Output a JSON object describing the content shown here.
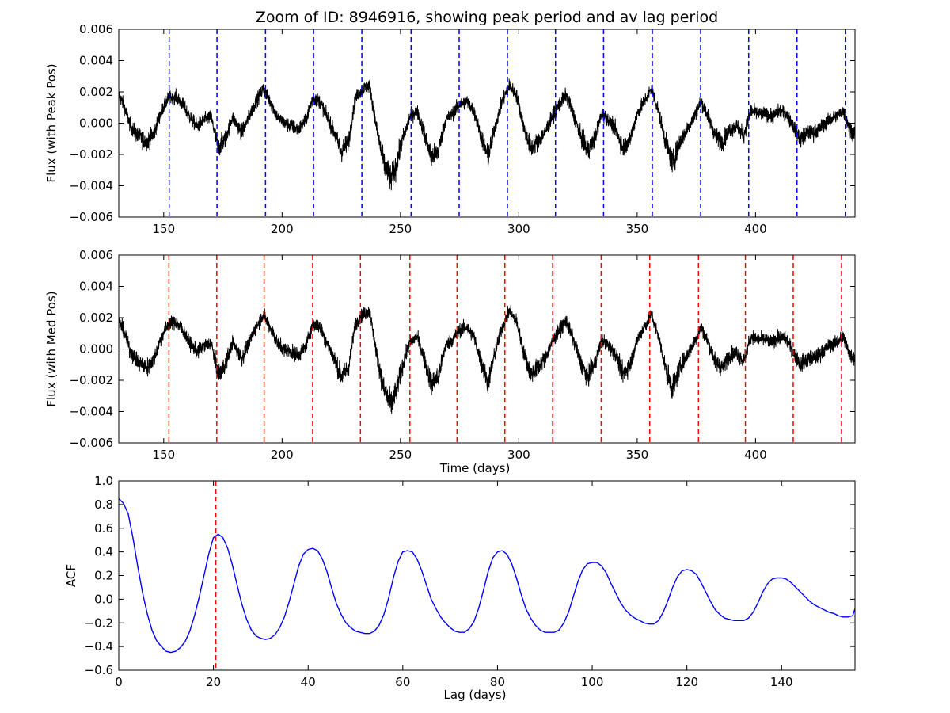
{
  "title": "Zoom of ID: 8946916, showing peak period and av lag period",
  "colors": {
    "flux": "#000000",
    "peak_lines": "#0000ff",
    "median_lines": "#ff0000",
    "acf": "#0000ff",
    "period_line": "#ff0000"
  },
  "chart_data": [
    {
      "type": "line",
      "panel": "top",
      "xlabel": "",
      "ylabel": "Flux (with Peak Pos)",
      "xlim": [
        131,
        442
      ],
      "ylim": [
        -0.006,
        0.006
      ],
      "xticks": [
        "150",
        "200",
        "250",
        "300",
        "350",
        "400"
      ],
      "yticks": [
        "−0.006",
        "−0.004",
        "−0.002",
        "0.000",
        "0.002",
        "0.004",
        "0.006"
      ],
      "vlines": [
        152.3,
        172.5,
        193.0,
        213.3,
        233.7,
        254.5,
        274.8,
        295.2,
        315.5,
        335.8,
        356.4,
        376.8,
        397.1,
        417.5,
        437.9
      ],
      "vline_style": "dashed-blue",
      "series": [
        {
          "x": [
            131,
            133,
            136,
            139,
            143,
            146,
            149,
            152,
            155,
            158,
            161,
            164,
            167,
            170,
            173,
            176,
            179,
            183,
            186,
            189,
            192,
            195,
            198,
            201,
            204,
            207,
            210,
            213,
            216,
            219,
            222,
            225,
            228,
            231,
            234,
            237,
            240,
            243,
            246,
            248,
            251,
            254,
            257,
            260,
            263,
            266,
            269,
            272,
            275,
            278,
            281,
            284,
            287,
            290,
            293,
            296,
            299,
            302,
            305,
            308,
            311,
            314,
            317,
            320,
            323,
            326,
            329,
            332,
            335,
            338,
            341,
            344,
            347,
            350,
            353,
            356,
            359,
            362,
            365,
            368,
            371,
            374,
            377,
            380,
            383,
            386,
            389,
            392,
            395,
            398,
            401,
            404,
            407,
            410,
            413,
            416,
            419,
            422,
            425,
            428,
            431,
            434,
            437,
            440,
            442
          ],
          "values": [
            0.0018,
            0.0012,
            -0.0002,
            -0.0008,
            -0.0012,
            -0.0006,
            0.0008,
            0.0016,
            0.0017,
            0.0012,
            0.0004,
            -0.0002,
            0.0002,
            0.0004,
            -0.0016,
            -0.001,
            0.0004,
            -0.0006,
            0.0004,
            0.0014,
            0.0022,
            0.0014,
            0.0004,
            0.0,
            -0.0002,
            -0.0004,
            0.0002,
            0.0016,
            0.0014,
            0.0004,
            -0.0006,
            -0.0018,
            -0.0012,
            0.0016,
            0.0022,
            0.0024,
            -0.0004,
            -0.0026,
            -0.0036,
            -0.0028,
            -0.001,
            0.0004,
            0.0008,
            -0.0006,
            -0.0022,
            -0.0018,
            0.0002,
            0.0006,
            0.0012,
            0.0014,
            0.0008,
            -0.0008,
            -0.0022,
            -0.0002,
            0.0014,
            0.0024,
            0.0018,
            -0.0002,
            -0.0016,
            -0.0012,
            -0.0006,
            0.0004,
            0.0012,
            0.0018,
            0.0006,
            -0.0008,
            -0.0018,
            -0.001,
            0.0006,
            0.0002,
            -0.0004,
            -0.0016,
            -0.001,
            0.0006,
            0.0014,
            0.0022,
            0.0008,
            -0.0012,
            -0.0026,
            -0.0012,
            -0.0004,
            0.0004,
            0.0014,
            0.0004,
            -0.0008,
            -0.0012,
            -0.0004,
            -0.0002,
            -0.0008,
            0.0008,
            0.0006,
            0.0006,
            0.0004,
            0.0008,
            0.0006,
            -0.0002,
            -0.001,
            -0.0006,
            -0.0006,
            -0.0002,
            0.0002,
            0.0004,
            0.0008,
            -0.0004,
            -0.0006
          ]
        }
      ]
    },
    {
      "type": "line",
      "panel": "middle",
      "xlabel": "Time (days)",
      "ylabel": "Flux (with Med Pos)",
      "xlim": [
        131,
        442
      ],
      "ylim": [
        -0.006,
        0.006
      ],
      "xticks": [
        "150",
        "200",
        "250",
        "300",
        "350",
        "400"
      ],
      "yticks": [
        "−0.006",
        "−0.004",
        "−0.002",
        "0.000",
        "0.002",
        "0.004",
        "0.006"
      ],
      "vlines": [
        152.2,
        172.4,
        192.4,
        212.9,
        233.1,
        254.0,
        273.9,
        294.1,
        314.3,
        334.8,
        355.3,
        375.9,
        395.7,
        415.9,
        436.3
      ],
      "vline_style": "dashed-red",
      "series": [
        {
          "x": [
            131,
            133,
            136,
            139,
            143,
            146,
            149,
            152,
            155,
            158,
            161,
            164,
            167,
            170,
            173,
            176,
            179,
            183,
            186,
            189,
            192,
            195,
            198,
            201,
            204,
            207,
            210,
            213,
            216,
            219,
            222,
            225,
            228,
            231,
            234,
            237,
            240,
            243,
            246,
            248,
            251,
            254,
            257,
            260,
            263,
            266,
            269,
            272,
            275,
            278,
            281,
            284,
            287,
            290,
            293,
            296,
            299,
            302,
            305,
            308,
            311,
            314,
            317,
            320,
            323,
            326,
            329,
            332,
            335,
            338,
            341,
            344,
            347,
            350,
            353,
            356,
            359,
            362,
            365,
            368,
            371,
            374,
            377,
            380,
            383,
            386,
            389,
            392,
            395,
            398,
            401,
            404,
            407,
            410,
            413,
            416,
            419,
            422,
            425,
            428,
            431,
            434,
            437,
            440,
            442
          ],
          "values": [
            0.0018,
            0.0012,
            -0.0002,
            -0.0008,
            -0.0012,
            -0.0006,
            0.0008,
            0.0016,
            0.0017,
            0.0012,
            0.0004,
            -0.0002,
            0.0002,
            0.0004,
            -0.0016,
            -0.001,
            0.0004,
            -0.0006,
            0.0004,
            0.0014,
            0.0022,
            0.0014,
            0.0004,
            0.0,
            -0.0002,
            -0.0004,
            0.0002,
            0.0016,
            0.0014,
            0.0004,
            -0.0006,
            -0.0018,
            -0.0012,
            0.0016,
            0.0022,
            0.0024,
            -0.0004,
            -0.0026,
            -0.0036,
            -0.0028,
            -0.001,
            0.0004,
            0.0008,
            -0.0006,
            -0.0022,
            -0.0018,
            0.0002,
            0.0006,
            0.0012,
            0.0014,
            0.0008,
            -0.0008,
            -0.0022,
            -0.0002,
            0.0014,
            0.0024,
            0.0018,
            -0.0002,
            -0.0016,
            -0.0012,
            -0.0006,
            0.0004,
            0.0012,
            0.0018,
            0.0006,
            -0.0008,
            -0.0018,
            -0.001,
            0.0006,
            0.0002,
            -0.0004,
            -0.0016,
            -0.001,
            0.0006,
            0.0014,
            0.0022,
            0.0008,
            -0.0012,
            -0.0026,
            -0.0012,
            -0.0004,
            0.0004,
            0.0014,
            0.0004,
            -0.0008,
            -0.0012,
            -0.0004,
            -0.0002,
            -0.0008,
            0.0008,
            0.0006,
            0.0006,
            0.0004,
            0.0008,
            0.0006,
            -0.0002,
            -0.001,
            -0.0006,
            -0.0006,
            -0.0002,
            0.0002,
            0.0004,
            0.0008,
            -0.0004,
            -0.0006
          ]
        }
      ]
    },
    {
      "type": "line",
      "panel": "bottom",
      "xlabel": "Lag (days)",
      "ylabel": "ACF",
      "xlim": [
        0,
        155.5
      ],
      "ylim": [
        -0.6,
        1.0
      ],
      "xticks": [
        "0",
        "20",
        "40",
        "60",
        "80",
        "100",
        "120",
        "140"
      ],
      "yticks": [
        "−0.6",
        "−0.4",
        "−0.2",
        "0.0",
        "0.2",
        "0.4",
        "0.6",
        "0.8",
        "1.0"
      ],
      "vlines": [
        20.5
      ],
      "vline_style": "dashed-red",
      "series": [
        {
          "x": [
            0,
            1,
            2,
            3,
            4,
            5,
            6,
            7,
            8,
            9,
            10,
            11,
            12,
            13,
            14,
            15,
            16,
            17,
            18,
            19,
            20,
            21,
            22,
            23,
            24,
            25,
            26,
            27,
            28,
            29,
            30,
            31,
            32,
            33,
            34,
            35,
            36,
            37,
            38,
            39,
            40,
            41,
            42,
            43,
            44,
            45,
            46,
            47,
            48,
            49,
            50,
            51,
            52,
            53,
            54,
            55,
            56,
            57,
            58,
            59,
            60,
            61,
            62,
            63,
            64,
            65,
            66,
            67,
            68,
            69,
            70,
            71,
            72,
            73,
            74,
            75,
            76,
            77,
            78,
            79,
            80,
            81,
            82,
            83,
            84,
            85,
            86,
            87,
            88,
            89,
            90,
            91,
            92,
            93,
            94,
            95,
            96,
            97,
            98,
            99,
            100,
            101,
            102,
            103,
            104,
            105,
            106,
            107,
            108,
            109,
            110,
            111,
            112,
            113,
            114,
            115,
            116,
            117,
            118,
            119,
            120,
            121,
            122,
            123,
            124,
            125,
            126,
            127,
            128,
            129,
            130,
            131,
            132,
            133,
            134,
            135,
            136,
            137,
            138,
            139,
            140,
            141,
            142,
            143,
            144,
            145,
            146,
            147,
            148,
            149,
            150,
            151,
            152,
            153,
            154,
            155,
            155.5
          ],
          "values": [
            0.85,
            0.81,
            0.72,
            0.52,
            0.28,
            0.06,
            -0.12,
            -0.26,
            -0.35,
            -0.4,
            -0.44,
            -0.45,
            -0.44,
            -0.41,
            -0.36,
            -0.27,
            -0.14,
            0.02,
            0.2,
            0.38,
            0.52,
            0.55,
            0.52,
            0.43,
            0.29,
            0.12,
            -0.04,
            -0.17,
            -0.26,
            -0.31,
            -0.33,
            -0.34,
            -0.33,
            -0.3,
            -0.24,
            -0.15,
            -0.02,
            0.13,
            0.28,
            0.38,
            0.42,
            0.43,
            0.41,
            0.34,
            0.23,
            0.09,
            -0.04,
            -0.13,
            -0.2,
            -0.24,
            -0.27,
            -0.28,
            -0.29,
            -0.29,
            -0.27,
            -0.22,
            -0.13,
            0.01,
            0.18,
            0.32,
            0.4,
            0.41,
            0.4,
            0.34,
            0.24,
            0.12,
            0.0,
            -0.08,
            -0.15,
            -0.2,
            -0.24,
            -0.27,
            -0.28,
            -0.28,
            -0.25,
            -0.19,
            -0.08,
            0.07,
            0.23,
            0.35,
            0.4,
            0.41,
            0.38,
            0.3,
            0.18,
            0.04,
            -0.08,
            -0.16,
            -0.22,
            -0.26,
            -0.28,
            -0.28,
            -0.28,
            -0.26,
            -0.2,
            -0.11,
            0.02,
            0.15,
            0.25,
            0.3,
            0.31,
            0.31,
            0.28,
            0.22,
            0.13,
            0.05,
            -0.03,
            -0.09,
            -0.13,
            -0.16,
            -0.18,
            -0.2,
            -0.21,
            -0.21,
            -0.18,
            -0.11,
            -0.01,
            0.1,
            0.19,
            0.24,
            0.25,
            0.24,
            0.21,
            0.14,
            0.06,
            -0.02,
            -0.09,
            -0.13,
            -0.16,
            -0.17,
            -0.18,
            -0.18,
            -0.18,
            -0.16,
            -0.11,
            -0.03,
            0.06,
            0.13,
            0.17,
            0.18,
            0.18,
            0.17,
            0.14,
            0.1,
            0.06,
            0.02,
            -0.02,
            -0.05,
            -0.07,
            -0.09,
            -0.11,
            -0.12,
            -0.14,
            -0.15,
            -0.15,
            -0.14,
            -0.08
          ]
        }
      ]
    }
  ]
}
